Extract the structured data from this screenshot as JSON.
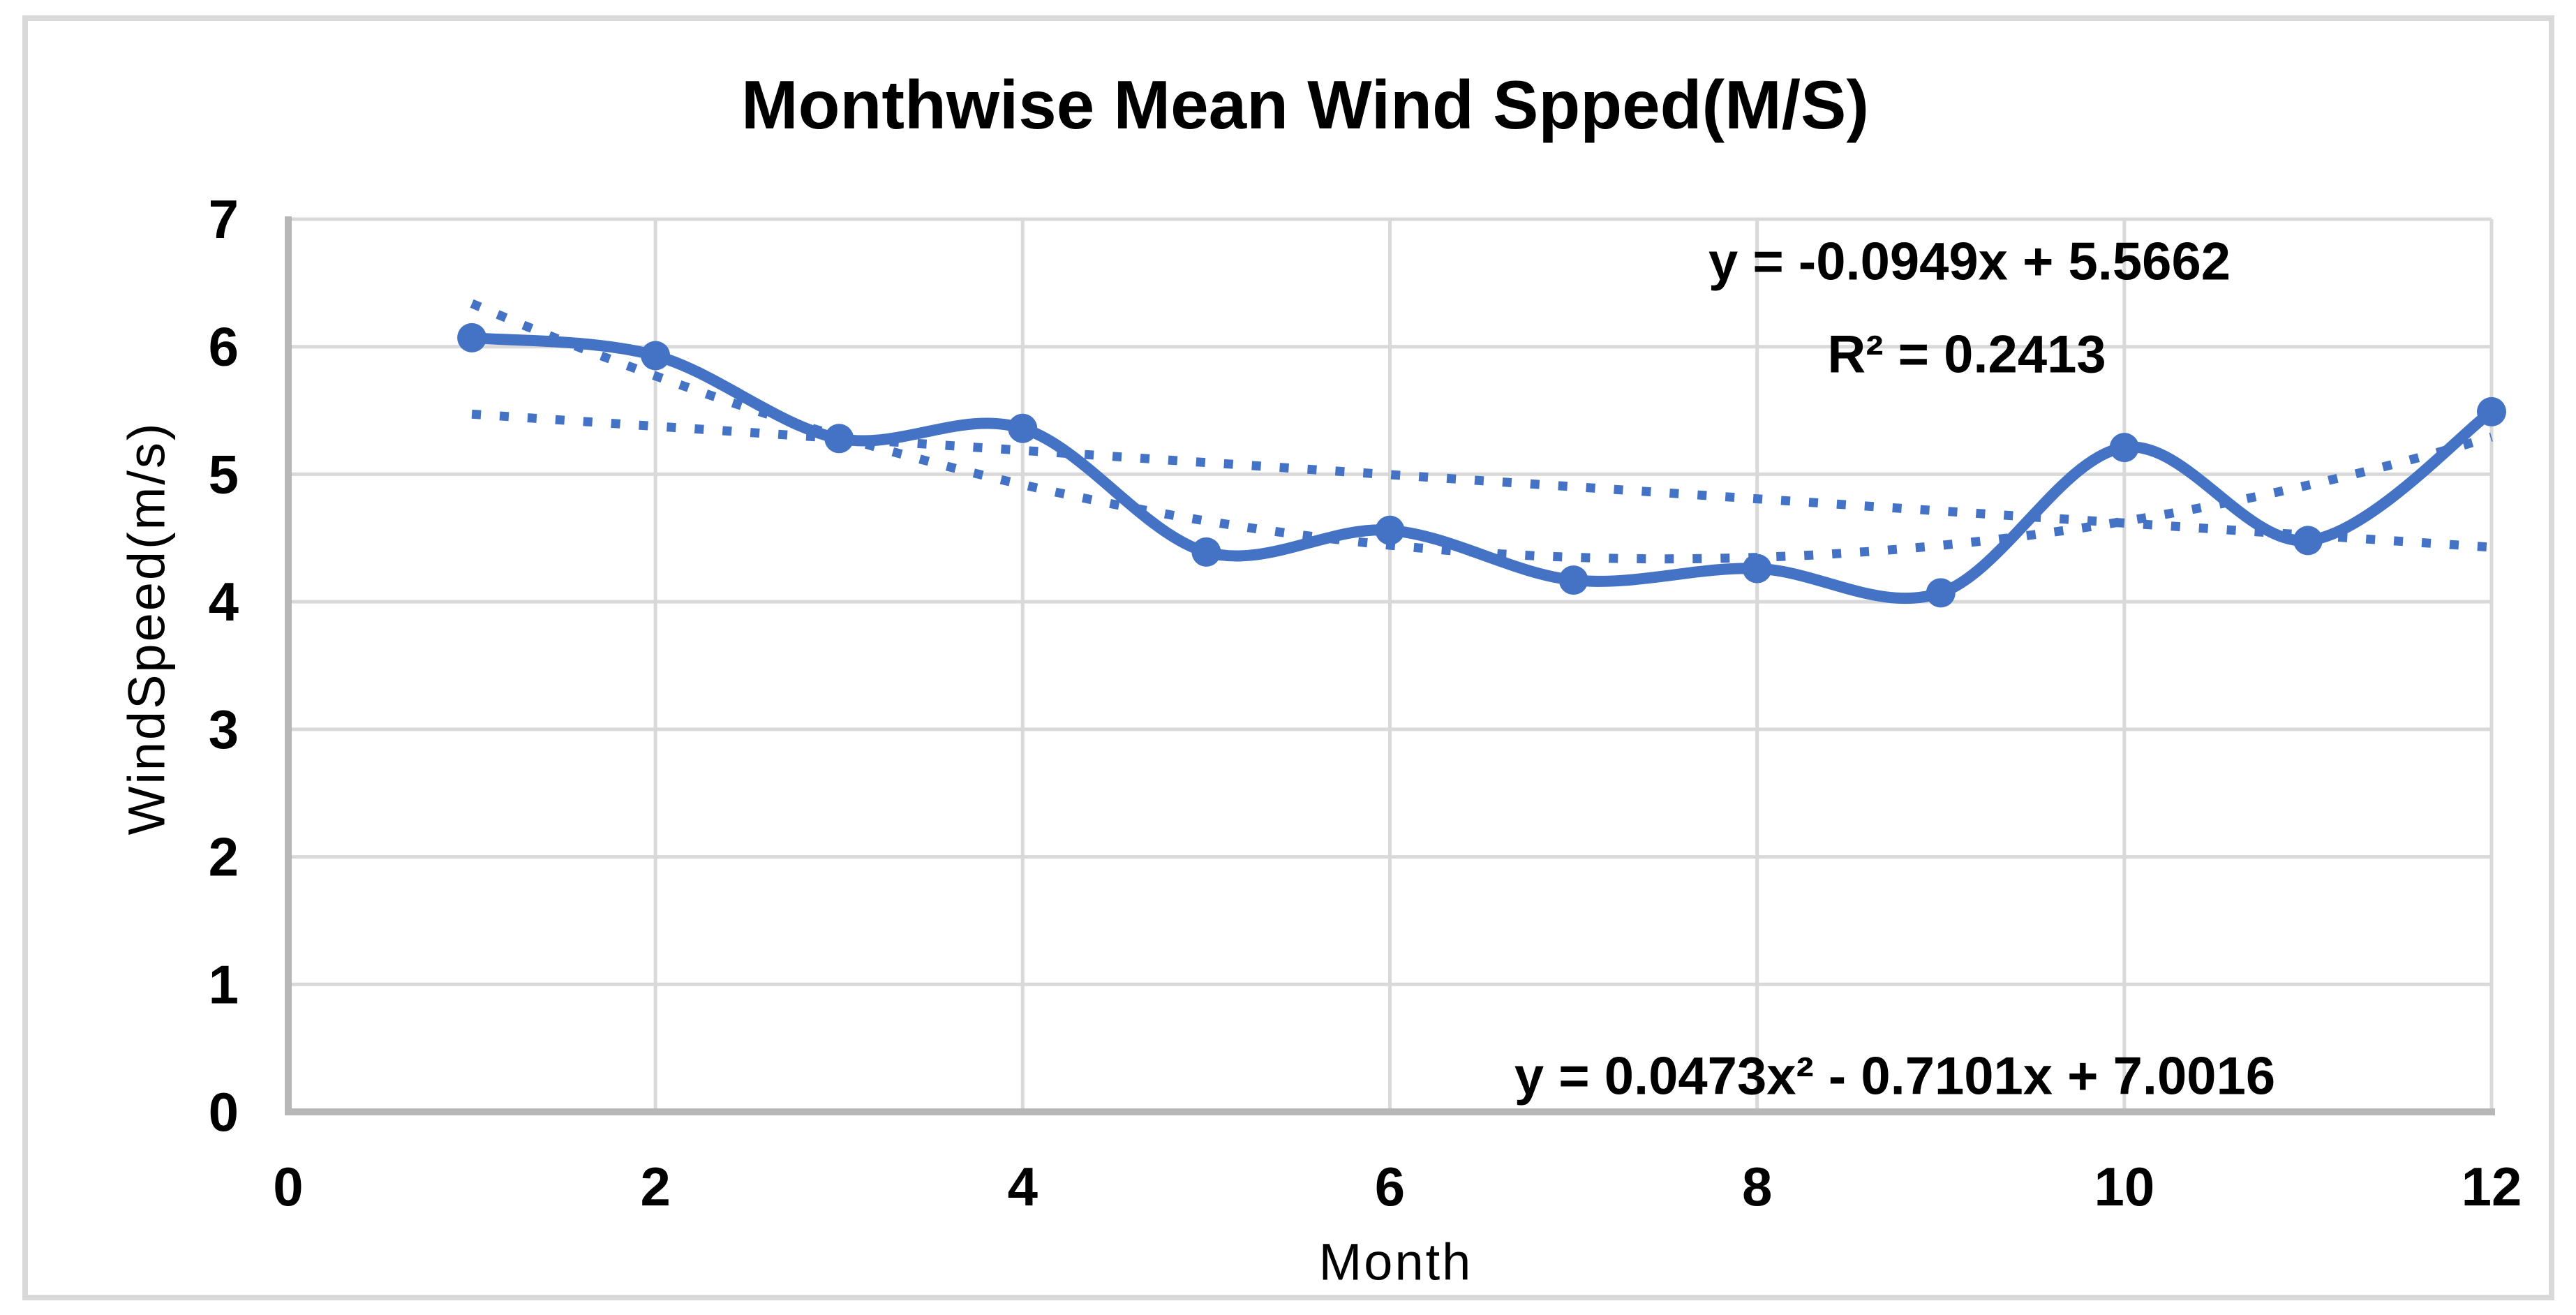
{
  "chart_data": {
    "type": "line",
    "title": "Monthwise Mean Wind Spped(M/S)",
    "xlabel": "Month",
    "ylabel": "WindSpeed(m/s)",
    "x": [
      1,
      2,
      3,
      4,
      5,
      6,
      7,
      8,
      9,
      10,
      11,
      12
    ],
    "series": [
      {
        "name": "Monthwise mean wind speed",
        "values": [
          6.07,
          5.93,
          5.28,
          5.36,
          4.39,
          4.56,
          4.17,
          4.26,
          4.07,
          5.21,
          4.48,
          5.49
        ],
        "color": "#4472C4",
        "marker": "circle",
        "smooth": true
      }
    ],
    "xlim": [
      0,
      12
    ],
    "ylim": [
      0,
      7
    ],
    "xticks": [
      0,
      2,
      4,
      6,
      8,
      10,
      12
    ],
    "yticks": [
      0,
      1,
      2,
      3,
      4,
      5,
      6,
      7
    ],
    "grid": true,
    "legend": "none",
    "trendlines": [
      {
        "kind": "linear",
        "slope": -0.0949,
        "intercept": 5.5662,
        "x_start": 1,
        "x_end": 12,
        "label": "y = -0.0949x + 5.5662",
        "r2_label": "R² = 0.2413",
        "style": "dotted",
        "color": "#4472C4"
      },
      {
        "kind": "polynomial",
        "a": 0.0473,
        "b": -0.7101,
        "c": 7.0016,
        "x_start": 1,
        "x_end": 12,
        "label": "y = 0.0473x² - 0.7101x + 7.0016",
        "style": "dotted",
        "color": "#4472C4"
      }
    ],
    "colors": {
      "series": "#4472C4",
      "gridline": "#D9D9D9",
      "axis": "#B7B7B7",
      "text": "#000000",
      "background": "#FFFFFF",
      "figure_border": "#D9D9D9"
    }
  }
}
